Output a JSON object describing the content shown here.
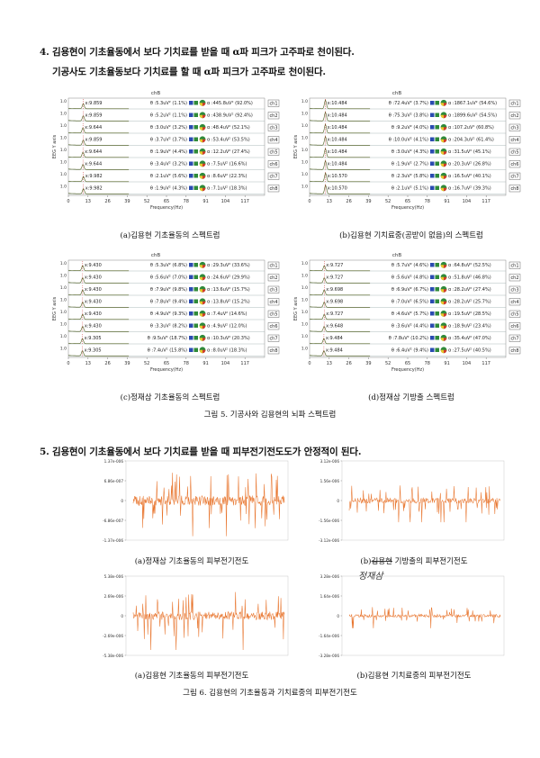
{
  "section4": {
    "line1": "4. 김용현이 기초율동에서 보다 기치료를 받을 때 α파 피크가 고주파로 천이된다.",
    "line2": "기공사도 기초율동보다 기치료를 할 때 α파 피크가 고주파로 천이된다."
  },
  "spectra": {
    "axis_title": "chB",
    "ylabel": "EEG Y axis",
    "xlabel": "Frequency(Hz)",
    "xticks": [
      "0",
      "13",
      "26",
      "39",
      "52",
      "65",
      "78",
      "91",
      "104",
      "117"
    ],
    "ytick": "1.0",
    "panels": [
      {
        "caption": "(a)김용현 기초율동의 스펙트럼",
        "rows": [
          {
            "peak": "x:9.859",
            "mid": "θ :5.3uV² (1.1%)",
            "right": "α :445.8uV² (92.0%)",
            "ch": "ch1"
          },
          {
            "peak": "x:9.859",
            "mid": "θ :5.2uV² (1.1%)",
            "right": "α :438.9uV² (92.4%)",
            "ch": "ch2"
          },
          {
            "peak": "x:9.644",
            "mid": "θ :3.0uV² (3.2%)",
            "right": "α :48.4uV² (52.1%)",
            "ch": "ch3"
          },
          {
            "peak": "x:9.859",
            "mid": "θ :3.7uV² (3.7%)",
            "right": "α :53.4uV² (53.5%)",
            "ch": "ch4"
          },
          {
            "peak": "x:9.644",
            "mid": "θ :1.9uV² (4.4%)",
            "right": "α :12.2uV² (27.4%)",
            "ch": "ch5"
          },
          {
            "peak": "x:9.644",
            "mid": "θ :3.4uV² (3.2%)",
            "right": "α :7.5uV² (16.6%)",
            "ch": "ch6"
          },
          {
            "peak": "x:9.982",
            "mid": "θ :2.1uV² (5.6%)",
            "right": "α :8.6uV² (22.3%)",
            "ch": "ch7"
          },
          {
            "peak": "x:9.982",
            "mid": "θ :1.9uV² (4.3%)",
            "right": "α :7.1uV² (18.3%)",
            "ch": "ch8"
          }
        ]
      },
      {
        "caption": "(b)김용현 기치료중(공받이 없음)의 스펙트럼",
        "rows": [
          {
            "peak": "x:10.484",
            "mid": "θ :72.4uV² (3.7%)",
            "right": "α :1867.1uV² (54.6%)",
            "ch": "ch1"
          },
          {
            "peak": "x:10.484",
            "mid": "θ :75.3uV² (3.8%)",
            "right": "α :1899.6uV² (54.5%)",
            "ch": "ch2"
          },
          {
            "peak": "x:10.484",
            "mid": "θ :9.2uV² (4.0%)",
            "right": "α :107.2uV² (60.8%)",
            "ch": "ch3"
          },
          {
            "peak": "x:10.484",
            "mid": "θ :10.0uV² (4.1%)",
            "right": "α :204.3uV² (61.4%)",
            "ch": "ch4"
          },
          {
            "peak": "x:10.484",
            "mid": "θ :3.0uV² (4.3%)",
            "right": "α :31.5uV² (45.1%)",
            "ch": "ch5"
          },
          {
            "peak": "x:10.484",
            "mid": "θ :1.9uV² (2.7%)",
            "right": "α :20.3uV² (26.8%)",
            "ch": "ch6"
          },
          {
            "peak": "x:10.570",
            "mid": "θ :2.3uV² (5.8%)",
            "right": "α :16.5uV² (40.1%)",
            "ch": "ch7"
          },
          {
            "peak": "x:10.570",
            "mid": "θ :2.1uV² (5.1%)",
            "right": "α :16.7uV² (39.3%)",
            "ch": "ch8"
          }
        ]
      },
      {
        "caption": "(c)정재삼 기초율동의 스펙트럼",
        "rows": [
          {
            "peak": "x:9.430",
            "mid": "θ :5.3uV² (6.8%)",
            "right": "α :29.3uV² (33.6%)",
            "ch": "ch1"
          },
          {
            "peak": "x:9.430",
            "mid": "θ :5.6uV² (7.0%)",
            "right": "α :24.6uV² (29.9%)",
            "ch": "ch2"
          },
          {
            "peak": "x:9.430",
            "mid": "θ :7.9uV² (9.8%)",
            "right": "α :13.6uV² (15.7%)",
            "ch": "ch3"
          },
          {
            "peak": "x:9.430",
            "mid": "θ :7.8uV² (9.4%)",
            "right": "α :13.8uV² (15.2%)",
            "ch": "ch4"
          },
          {
            "peak": "x:9.430",
            "mid": "θ :4.9uV² (9.3%)",
            "right": "α :7.4uV² (14.6%)",
            "ch": "ch5"
          },
          {
            "peak": "x:9.430",
            "mid": "θ :3.3uV² (8.2%)",
            "right": "α :4.9uV² (12.0%)",
            "ch": "ch6"
          },
          {
            "peak": "x:9.305",
            "mid": "θ :9.5uV² (18.7%)",
            "right": "α :10.3uV² (20.3%)",
            "ch": "ch7"
          },
          {
            "peak": "x:9.305",
            "mid": "θ :7.4uV² (15.8%)",
            "right": "α :8.0uV² (18.3%)",
            "ch": "ch8"
          }
        ]
      },
      {
        "caption": "(d)정재삼 기방출 스펙트럼",
        "rows": [
          {
            "peak": "x:9.727",
            "mid": "θ :5.7uV² (4.6%)",
            "right": "α :64.8uV² (52.5%)",
            "ch": "ch1"
          },
          {
            "peak": "x:9.727",
            "mid": "θ :5.6uV² (4.8%)",
            "right": "α :51.8uV² (46.8%)",
            "ch": "ch2"
          },
          {
            "peak": "x:9.698",
            "mid": "θ :6.9uV² (6.7%)",
            "right": "α :28.2uV² (27.4%)",
            "ch": "ch3"
          },
          {
            "peak": "x:9.698",
            "mid": "θ :7.0uV² (6.5%)",
            "right": "α :28.2uV² (25.7%)",
            "ch": "ch4"
          },
          {
            "peak": "x:9.727",
            "mid": "θ :4.6uV² (5.7%)",
            "right": "α :19.5uV² (28.5%)",
            "ch": "ch5"
          },
          {
            "peak": "x:9.648",
            "mid": "θ :3.6uV² (4.4%)",
            "right": "α :18.9uV² (23.4%)",
            "ch": "ch6"
          },
          {
            "peak": "x:9.484",
            "mid": "θ :7.8uV² (10.2%)",
            "right": "α :35.4uV² (47.0%)",
            "ch": "ch7"
          },
          {
            "peak": "x:9.484",
            "mid": "θ :6.4uV² (9.4%)",
            "right": "α :27.5uV² (40.5%)",
            "ch": "ch8"
          }
        ]
      }
    ]
  },
  "figure5_caption": "그림 5. 기공사와 김용현의 뇌파 스펙트럼",
  "section5": {
    "line1": "5. 김용현이 기초율동에서 보다 기치료를 받을 때 피부전기전도도가 안정적이 된다."
  },
  "gsr": {
    "panels": [
      {
        "caption": "(a)정재삼 기초율동의 피부전기전도",
        "yticks": [
          "1.37e-006",
          "6.86e-007",
          "0",
          "-6.86e-007",
          "-1.37e-006"
        ],
        "amp": 0.72,
        "seed": 3
      },
      {
        "caption": "(b)정재삼 기방출의 피부전기전도",
        "struck": "김용현",
        "note": "정재삼",
        "yticks": [
          "3.12e-006",
          "1.56e-006",
          "0",
          "-1.56e-006",
          "-3.12e-006"
        ],
        "amp": 0.38,
        "seed": 7
      },
      {
        "caption": "(a)김용현 기초율동의 피부전기전도",
        "yticks": [
          "5.38e-006",
          "2.69e-006",
          "0",
          "-2.69e-006",
          "-5.38e-006"
        ],
        "amp": 0.6,
        "seed": 11
      },
      {
        "caption": "(b)김용현 기치료중의 피부전기전도",
        "yticks": [
          "3.28e-006",
          "1.64e-006",
          "0",
          "-1.64e-006",
          "-3.28e-006"
        ],
        "amp": 0.22,
        "seed": 19
      }
    ]
  },
  "figure6_caption": "그림 6. 김용현의 기초율동과 기치료중의 피부전기전도",
  "colors": {
    "trace": "#e8742c",
    "pie_green": "#2f8a3a",
    "pie_red": "#d43b2a",
    "pie_yellow": "#e8c62a",
    "pie_blue": "#2a4bb0",
    "spectrum_fill": "#4a5a1a"
  }
}
